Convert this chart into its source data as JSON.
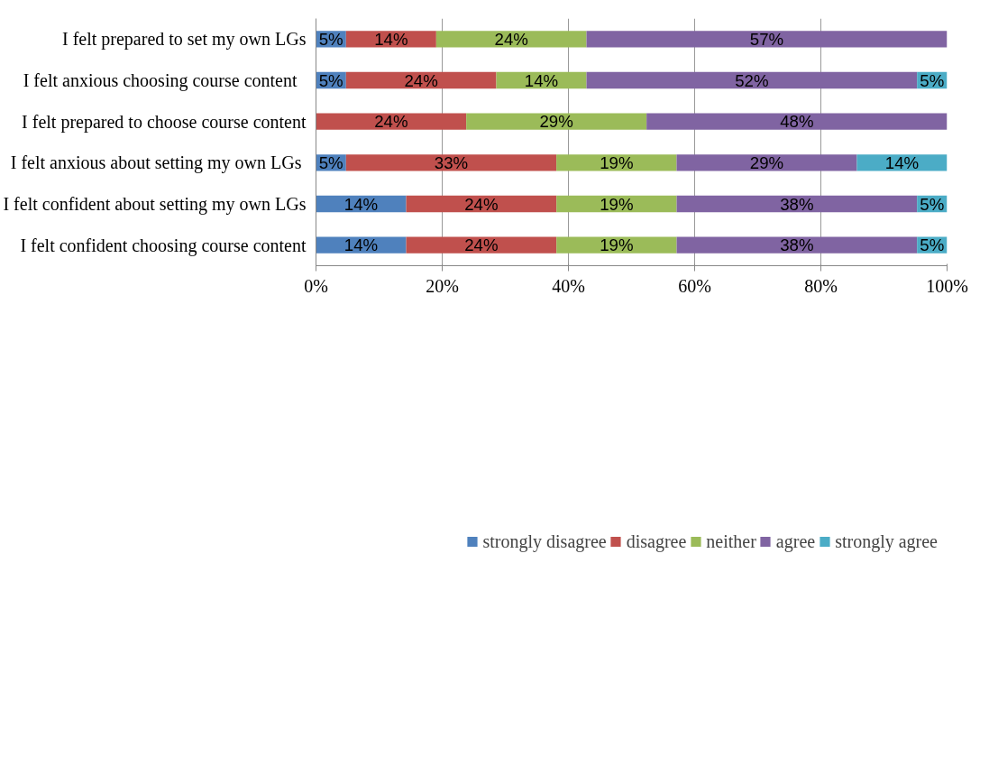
{
  "chart_data": {
    "type": "bar",
    "orientation": "horizontal",
    "stacked": true,
    "categories": [
      "I felt prepared to set my own LGs",
      "I  felt anxious  choosing course content",
      "I felt prepared to choose course content",
      "I  felt anxious about setting my own LGs",
      "I felt confident about setting my own LGs",
      "I felt confident choosing course content"
    ],
    "series": [
      {
        "name": "strongly disagree",
        "color": "#4f81bd",
        "values": [
          4.76,
          4.76,
          0,
          4.76,
          14.29,
          14.29
        ],
        "value_labels": [
          "5%",
          "5%",
          null,
          "5%",
          "14%",
          "14%"
        ]
      },
      {
        "name": "disagree",
        "color": "#c0504d",
        "values": [
          14.29,
          23.81,
          23.81,
          33.33,
          23.81,
          23.81
        ],
        "value_labels": [
          "14%",
          "24%",
          "24%",
          "33%",
          "24%",
          "24%"
        ]
      },
      {
        "name": "neither",
        "color": "#9bbb59",
        "values": [
          23.81,
          14.29,
          28.57,
          19.05,
          19.05,
          19.05
        ],
        "value_labels": [
          "24%",
          "14%",
          "29%",
          "19%",
          "19%",
          "19%"
        ]
      },
      {
        "name": "agree",
        "color": "#8064a2",
        "values": [
          57.14,
          52.38,
          47.62,
          28.57,
          38.09,
          38.09
        ],
        "value_labels": [
          "57%",
          "52%",
          "48%",
          "29%",
          "38%",
          "38%"
        ]
      },
      {
        "name": "strongly agree",
        "color": "#4bacc6",
        "values": [
          0,
          4.76,
          0,
          14.29,
          4.76,
          4.76
        ],
        "value_labels": [
          null,
          "5%",
          null,
          "14%",
          "5%",
          "5%"
        ]
      }
    ],
    "xlim": [
      0,
      100
    ],
    "xticks": [
      {
        "value": 0,
        "label": "0%"
      },
      {
        "value": 20,
        "label": "20%"
      },
      {
        "value": 40,
        "label": "40%"
      },
      {
        "value": 60,
        "label": "60%"
      },
      {
        "value": 80,
        "label": "80%"
      },
      {
        "value": 100,
        "label": "100%"
      }
    ],
    "grid": "x",
    "legend": "bottom"
  }
}
